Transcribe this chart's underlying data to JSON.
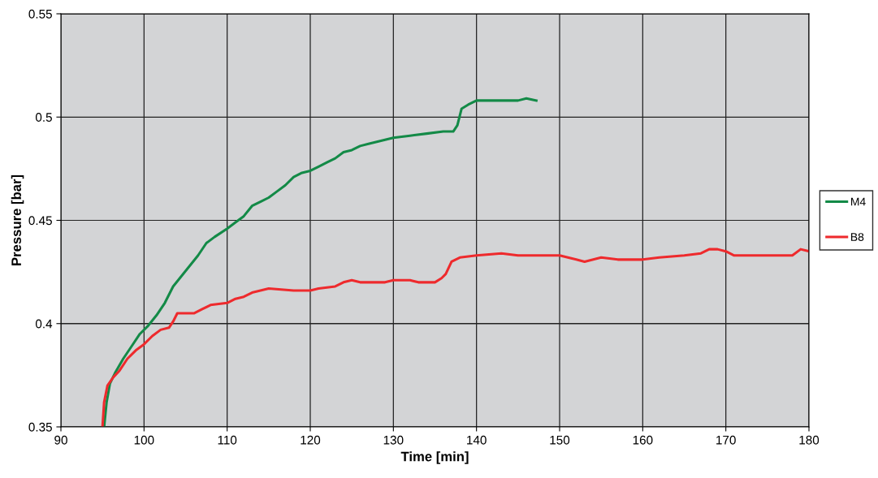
{
  "chart_data": {
    "type": "line",
    "xlabel": "Time [min]",
    "ylabel": "Pressure [bar]",
    "xlim": [
      90,
      180
    ],
    "ylim": [
      0.35,
      0.55
    ],
    "xticks": [
      90,
      100,
      110,
      120,
      130,
      140,
      150,
      160,
      170,
      180
    ],
    "yticks": [
      0.35,
      0.4,
      0.45,
      0.5,
      0.55
    ],
    "grid": true,
    "legend": "right",
    "marker": "none",
    "line_style": "solid",
    "series": [
      {
        "name": "M4",
        "color": "#138a47",
        "x": [
          95.2,
          95.5,
          95.9,
          96.5,
          97.5,
          98.5,
          99.5,
          100.5,
          101.5,
          102.5,
          103.5,
          104.5,
          105.5,
          106.5,
          107.5,
          108.5,
          110,
          111,
          112,
          113,
          114,
          115,
          116,
          117,
          118,
          119,
          120,
          121,
          122,
          123,
          124,
          125,
          126,
          127,
          128,
          129,
          130,
          132,
          134,
          136,
          137.2,
          137.7,
          138.2,
          139,
          140,
          145,
          146,
          147.2
        ],
        "values": [
          0.35,
          0.362,
          0.371,
          0.376,
          0.383,
          0.389,
          0.395,
          0.399,
          0.404,
          0.41,
          0.418,
          0.423,
          0.428,
          0.433,
          0.439,
          0.442,
          0.446,
          0.449,
          0.452,
          0.457,
          0.459,
          0.461,
          0.464,
          0.467,
          0.471,
          0.473,
          0.474,
          0.476,
          0.478,
          0.48,
          0.483,
          0.484,
          0.486,
          0.487,
          0.488,
          0.489,
          0.49,
          0.491,
          0.492,
          0.493,
          0.493,
          0.496,
          0.504,
          0.506,
          0.508,
          0.508,
          0.509,
          0.508
        ]
      },
      {
        "name": "B8",
        "color": "#ee2a2d",
        "x": [
          95.0,
          95.2,
          95.6,
          96.3,
          97,
          98,
          99,
          100,
          101,
          102,
          103,
          103.5,
          104,
          106,
          107,
          108,
          110,
          111,
          112,
          113,
          114,
          115,
          118,
          120,
          121,
          123,
          124,
          125,
          126,
          129,
          130,
          132,
          133,
          135,
          135.8,
          136.3,
          137,
          138,
          140,
          143,
          145,
          147,
          150,
          151,
          152,
          153,
          155,
          157,
          160,
          162,
          165,
          167,
          168,
          169,
          170,
          171,
          173,
          175,
          178,
          179,
          180
        ],
        "values": [
          0.35,
          0.362,
          0.37,
          0.374,
          0.377,
          0.383,
          0.387,
          0.39,
          0.394,
          0.397,
          0.398,
          0.401,
          0.405,
          0.405,
          0.407,
          0.409,
          0.41,
          0.412,
          0.413,
          0.415,
          0.416,
          0.417,
          0.416,
          0.416,
          0.417,
          0.418,
          0.42,
          0.421,
          0.42,
          0.42,
          0.421,
          0.421,
          0.42,
          0.42,
          0.422,
          0.424,
          0.43,
          0.432,
          0.433,
          0.434,
          0.433,
          0.433,
          0.433,
          0.432,
          0.431,
          0.43,
          0.432,
          0.431,
          0.431,
          0.432,
          0.433,
          0.434,
          0.436,
          0.436,
          0.435,
          0.433,
          0.433,
          0.433,
          0.433,
          0.436,
          0.435
        ]
      }
    ]
  }
}
